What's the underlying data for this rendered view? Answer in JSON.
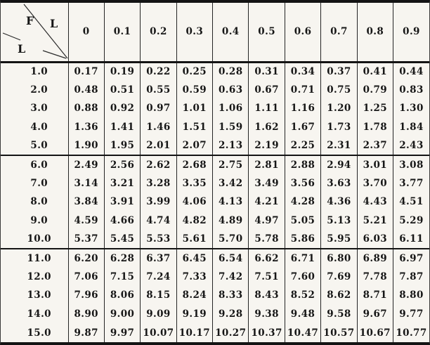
{
  "table": {
    "corner": {
      "numerator": "F",
      "denominator": "L",
      "column_axis_label": "L"
    },
    "col_headers": [
      "0",
      "0.1",
      "0.2",
      "0.3",
      "0.4",
      "0.5",
      "0.6",
      "0.7",
      "0.8",
      "0.9"
    ],
    "row_groups": [
      {
        "rows": [
          {
            "label": "1.0",
            "values": [
              "0.17",
              "0.19",
              "0.22",
              "0.25",
              "0.28",
              "0.31",
              "0.34",
              "0.37",
              "0.41",
              "0.44"
            ]
          },
          {
            "label": "2.0",
            "values": [
              "0.48",
              "0.51",
              "0.55",
              "0.59",
              "0.63",
              "0.67",
              "0.71",
              "0.75",
              "0.79",
              "0.83"
            ]
          },
          {
            "label": "3.0",
            "values": [
              "0.88",
              "0.92",
              "0.97",
              "1.01",
              "1.06",
              "1.11",
              "1.16",
              "1.20",
              "1.25",
              "1.30"
            ]
          },
          {
            "label": "4.0",
            "values": [
              "1.36",
              "1.41",
              "1.46",
              "1.51",
              "1.59",
              "1.62",
              "1.67",
              "1.73",
              "1.78",
              "1.84"
            ]
          },
          {
            "label": "5.0",
            "values": [
              "1.90",
              "1.95",
              "2.01",
              "2.07",
              "2.13",
              "2.19",
              "2.25",
              "2.31",
              "2.37",
              "2.43"
            ]
          }
        ]
      },
      {
        "rows": [
          {
            "label": "6.0",
            "values": [
              "2.49",
              "2.56",
              "2.62",
              "2.68",
              "2.75",
              "2.81",
              "2.88",
              "2.94",
              "3.01",
              "3.08"
            ]
          },
          {
            "label": "7.0",
            "values": [
              "3.14",
              "3.21",
              "3.28",
              "3.35",
              "3.42",
              "3.49",
              "3.56",
              "3.63",
              "3.70",
              "3.77"
            ]
          },
          {
            "label": "8.0",
            "values": [
              "3.84",
              "3.91",
              "3.99",
              "4.06",
              "4.13",
              "4.21",
              "4.28",
              "4.36",
              "4.43",
              "4.51"
            ]
          },
          {
            "label": "9.0",
            "values": [
              "4.59",
              "4.66",
              "4.74",
              "4.82",
              "4.89",
              "4.97",
              "5.05",
              "5.13",
              "5.21",
              "5.29"
            ]
          },
          {
            "label": "10.0",
            "values": [
              "5.37",
              "5.45",
              "5.53",
              "5.61",
              "5.70",
              "5.78",
              "5.86",
              "5.95",
              "6.03",
              "6.11"
            ]
          }
        ]
      },
      {
        "rows": [
          {
            "label": "11.0",
            "values": [
              "6.20",
              "6.28",
              "6.37",
              "6.45",
              "6.54",
              "6.62",
              "6.71",
              "6.80",
              "6.89",
              "6.97"
            ]
          },
          {
            "label": "12.0",
            "values": [
              "7.06",
              "7.15",
              "7.24",
              "7.33",
              "7.42",
              "7.51",
              "7.60",
              "7.69",
              "7.78",
              "7.87"
            ]
          },
          {
            "label": "13.0",
            "values": [
              "7.96",
              "8.06",
              "8.15",
              "8.24",
              "8.33",
              "8.43",
              "8.52",
              "8.62",
              "8.71",
              "8.80"
            ]
          },
          {
            "label": "14.0",
            "values": [
              "8.90",
              "9.00",
              "9.09",
              "9.19",
              "9.28",
              "9.38",
              "9.48",
              "9.58",
              "9.67",
              "9.77"
            ]
          },
          {
            "label": "15.0",
            "values": [
              "9.87",
              "9.97",
              "10.07",
              "10.17",
              "10.27",
              "10.37",
              "10.47",
              "10.57",
              "10.67",
              "10.77"
            ]
          }
        ]
      }
    ]
  },
  "colors": {
    "ink": "#161616",
    "paper": "#f7f5f0",
    "rule": "#141414"
  }
}
